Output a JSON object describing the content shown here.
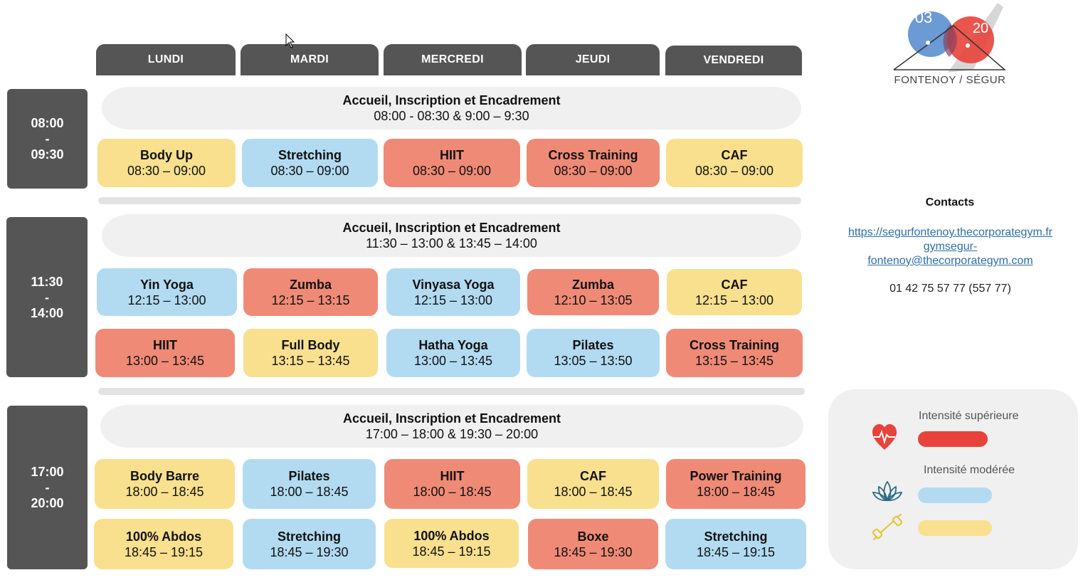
{
  "days": [
    "LUNDI",
    "MARDI",
    "MERCREDI",
    "JEUDI",
    "VENDREDI"
  ],
  "slots": [
    {
      "start": "08:00",
      "dash": "-",
      "end": "09:30"
    },
    {
      "start": "11:30",
      "dash": "-",
      "end": "14:00"
    },
    {
      "start": "17:00",
      "dash": "-",
      "end": "20:00"
    }
  ],
  "welcome": [
    {
      "title": "Accueil, Inscription et Encadrement",
      "times": "08:00 - 08:30  &  9:00 – 9:30"
    },
    {
      "title": "Accueil, Inscription et Encadrement",
      "times": "11:30 – 13:00  &  13:45 – 14:00"
    },
    {
      "title": "Accueil, Inscription et Encadrement",
      "times": "17:00 – 18:00  &  19:30 – 20:00"
    }
  ],
  "morning": [
    {
      "name": "Body Up",
      "time": "08:30 – 09:00",
      "intensity": "yellow"
    },
    {
      "name": "Stretching",
      "time": "08:30 – 09:00",
      "intensity": "blue"
    },
    {
      "name": "HIIT",
      "time": "08:30 – 09:00",
      "intensity": "red"
    },
    {
      "name": "Cross Training",
      "time": "08:30 – 09:00",
      "intensity": "red"
    },
    {
      "name": "CAF",
      "time": "08:30 – 09:00",
      "intensity": "yellow"
    }
  ],
  "noon_1": [
    {
      "name": "Yin Yoga",
      "time": "12:15 – 13:00",
      "intensity": "blue"
    },
    {
      "name": "Zumba",
      "time": "12:15 – 13:15",
      "intensity": "red"
    },
    {
      "name": "Vinyasa Yoga",
      "time": "12:15 – 13:00",
      "intensity": "blue"
    },
    {
      "name": "Zumba",
      "time": "12:10 – 13:05",
      "intensity": "red"
    },
    {
      "name": "CAF",
      "time": "12:15 – 13:00",
      "intensity": "yellow"
    }
  ],
  "noon_2": [
    {
      "name": "HIIT",
      "time": "13:00 – 13:45",
      "intensity": "red"
    },
    {
      "name": "Full Body",
      "time": "13:15 – 13:45",
      "intensity": "yellow"
    },
    {
      "name": "Hatha Yoga",
      "time": "13:00 – 13:45",
      "intensity": "blue"
    },
    {
      "name": "Pilates",
      "time": "13:05 – 13:50",
      "intensity": "blue"
    },
    {
      "name": "Cross Training",
      "time": "13:15 – 13:45",
      "intensity": "red"
    }
  ],
  "evening_1": [
    {
      "name": "Body Barre",
      "time": "18:00 – 18:45",
      "intensity": "yellow"
    },
    {
      "name": "Pilates",
      "time": "18:00 – 18:45",
      "intensity": "blue"
    },
    {
      "name": "HIIT",
      "time": "18:00 – 18:45",
      "intensity": "red"
    },
    {
      "name": "CAF",
      "time": "18:00 – 18:45",
      "intensity": "yellow"
    },
    {
      "name": "Power Training",
      "time": "18:00 – 18:45",
      "intensity": "red"
    }
  ],
  "evening_2": [
    {
      "name": "100% Abdos",
      "time": "18:45 – 19:15",
      "intensity": "yellow"
    },
    {
      "name": "Stretching",
      "time": "18:45 – 19:30",
      "intensity": "blue"
    },
    {
      "name": "100% Abdos",
      "time": "18:45 – 19:15",
      "intensity": "yellow"
    },
    {
      "name": "Boxe",
      "time": "18:45 – 19:30",
      "intensity": "red"
    },
    {
      "name": "Stretching",
      "time": "18:45 – 19:15",
      "intensity": "blue"
    }
  ],
  "logo": {
    "left_number": "03",
    "right_number": "20",
    "text": "FONTENOY / SÉGUR"
  },
  "contacts": {
    "title": "Contacts",
    "url": "https://segurfontenoy.thecorporategym.fr",
    "email_line1": "gymsegur-",
    "email_line2": "fontenoy@thecorporategym.com",
    "phone": "01 42 75 57 77 (557 77)"
  },
  "legend": {
    "high_label": "Intensité supérieure",
    "moderate_label": "Intensité modérée",
    "high_icon": "heartbeat-icon",
    "moderate_icon": "lotus-icon",
    "light_icon": "dumbbell-icon"
  },
  "colors": {
    "red": "#ef8a76",
    "blue": "#b2dbf2",
    "yellow": "#f8e08e",
    "header_gray": "#555555",
    "legend_red": "#e8433a",
    "legend_blue": "#b2dbf2",
    "legend_yellow": "#f8e08e"
  }
}
